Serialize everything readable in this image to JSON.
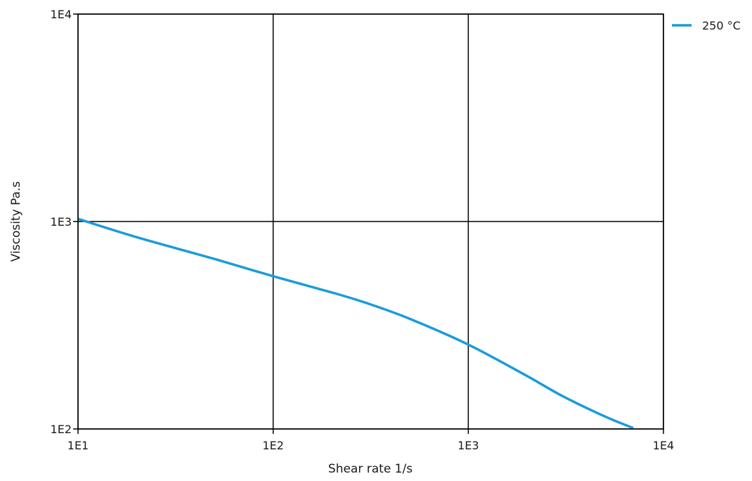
{
  "chart_data": {
    "type": "line",
    "xlabel": "Shear rate  1/s",
    "ylabel": "Viscosity  Pa.s",
    "x_scale": "log",
    "y_scale": "log",
    "xlim": [
      10,
      10000
    ],
    "ylim": [
      100,
      10000
    ],
    "x_ticks": [
      10,
      100,
      1000,
      10000
    ],
    "x_tick_labels": [
      "1E1",
      "1E2",
      "1E3",
      "1E4"
    ],
    "y_ticks": [
      100,
      1000,
      10000
    ],
    "y_tick_labels": [
      "1E2",
      "1E3",
      "1E4"
    ],
    "grid": true,
    "legend_position": "top-right",
    "series": [
      {
        "name": "250 °C",
        "color": "#1a9cd8",
        "x": [
          10,
          20,
          50,
          100,
          200,
          300,
          500,
          1000,
          2000,
          3000,
          5000,
          7000
        ],
        "y": [
          1030,
          840,
          660,
          545,
          455,
          405,
          340,
          255,
          180,
          145,
          115,
          101
        ]
      }
    ]
  }
}
